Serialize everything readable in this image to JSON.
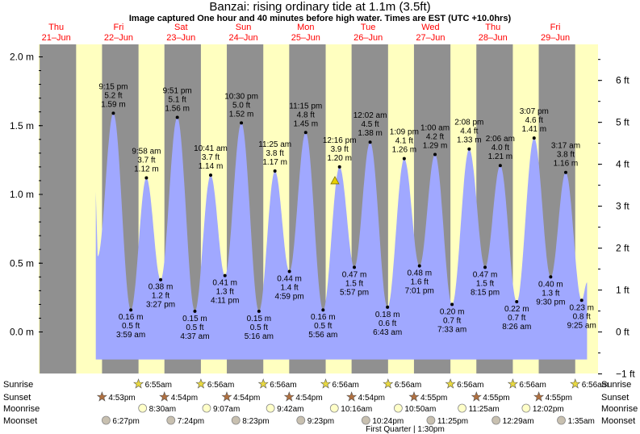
{
  "title": "Banzai: rising  ordinary tide at 1.1m (3.5ft)",
  "subtitle": "Image captured One hour and 40 minutes before high water. Times are EST (UTC +10.0hrs)",
  "colors": {
    "day": "#ffffc0",
    "night": "#909090",
    "tide": "#a0a8ff",
    "date_label": "#ff0000",
    "marker": "#000000"
  },
  "chart_data": {
    "type": "area",
    "title": "Banzai: rising  ordinary tide at 1.1m (3.5ft)",
    "ylabel_left_unit": "m",
    "ylabel_right_unit": "ft",
    "ylim_m": [
      -0.2,
      2.1
    ],
    "left_ticks": [
      "0.0 m",
      "0.5 m",
      "1.0 m",
      "1.5 m",
      "2.0 m"
    ],
    "left_tick_values": [
      0.0,
      0.5,
      1.0,
      1.5,
      2.0
    ],
    "right_ticks": [
      "−1 ft",
      "0 ft",
      "1 ft",
      "2 ft",
      "3 ft",
      "4 ft",
      "5 ft",
      "6 ft"
    ],
    "right_tick_values_ft": [
      -1,
      0,
      1,
      2,
      3,
      4,
      5,
      6
    ],
    "days": [
      {
        "name": "Thu",
        "date": "21–Jun"
      },
      {
        "name": "Fri",
        "date": "22–Jun"
      },
      {
        "name": "Sat",
        "date": "23–Jun"
      },
      {
        "name": "Sun",
        "date": "24–Jun"
      },
      {
        "name": "Mon",
        "date": "25–Jun"
      },
      {
        "name": "Tue",
        "date": "26–Jun"
      },
      {
        "name": "Wed",
        "date": "27–Jun"
      },
      {
        "name": "Thu",
        "date": "28–Jun"
      },
      {
        "name": "Fri",
        "date": "29–Jun"
      }
    ],
    "tides": [
      {
        "day": 0,
        "time": "9:15 pm",
        "ft": "5.2 ft",
        "m": "1.59 m",
        "v": 1.59,
        "type": "high"
      },
      {
        "day": 1,
        "time": "3:59 am",
        "ft": "0.5 ft",
        "m": "0.16 m",
        "v": 0.16,
        "type": "low"
      },
      {
        "day": 1,
        "time": "9:58 am",
        "ft": "3.7 ft",
        "m": "1.12 m",
        "v": 1.12,
        "type": "high"
      },
      {
        "day": 1,
        "time": "3:27 pm",
        "ft": "1.2 ft",
        "m": "0.38 m",
        "v": 0.38,
        "type": "low"
      },
      {
        "day": 1,
        "time": "9:51 pm",
        "ft": "5.1 ft",
        "m": "1.56 m",
        "v": 1.56,
        "type": "high"
      },
      {
        "day": 2,
        "time": "4:37 am",
        "ft": "0.5 ft",
        "m": "0.15 m",
        "v": 0.15,
        "type": "low"
      },
      {
        "day": 2,
        "time": "10:41 am",
        "ft": "3.7 ft",
        "m": "1.14 m",
        "v": 1.14,
        "type": "high"
      },
      {
        "day": 2,
        "time": "4:11 pm",
        "ft": "1.3 ft",
        "m": "0.41 m",
        "v": 0.41,
        "type": "low"
      },
      {
        "day": 2,
        "time": "10:30 pm",
        "ft": "5.0 ft",
        "m": "1.52 m",
        "v": 1.52,
        "type": "high"
      },
      {
        "day": 3,
        "time": "5:16 am",
        "ft": "0.5 ft",
        "m": "0.15 m",
        "v": 0.15,
        "type": "low"
      },
      {
        "day": 3,
        "time": "11:25 am",
        "ft": "3.8 ft",
        "m": "1.17 m",
        "v": 1.17,
        "type": "high"
      },
      {
        "day": 3,
        "time": "4:59 pm",
        "ft": "1.4 ft",
        "m": "0.44 m",
        "v": 0.44,
        "type": "low"
      },
      {
        "day": 3,
        "time": "11:15 pm",
        "ft": "4.8 ft",
        "m": "1.45 m",
        "v": 1.45,
        "type": "high"
      },
      {
        "day": 4,
        "time": "5:56 am",
        "ft": "0.5 ft",
        "m": "0.16 m",
        "v": 0.16,
        "type": "low"
      },
      {
        "day": 4,
        "time": "12:16 pm",
        "ft": "3.9 ft",
        "m": "1.20 m",
        "v": 1.2,
        "type": "high"
      },
      {
        "day": 4,
        "time": "5:57 pm",
        "ft": "1.5 ft",
        "m": "0.47 m",
        "v": 0.47,
        "type": "low"
      },
      {
        "day": 5,
        "time": "12:02 am",
        "ft": "4.5 ft",
        "m": "1.38 m",
        "v": 1.38,
        "type": "high"
      },
      {
        "day": 5,
        "time": "6:43 am",
        "ft": "0.6 ft",
        "m": "0.18 m",
        "v": 0.18,
        "type": "low"
      },
      {
        "day": 5,
        "time": "1:09 pm",
        "ft": "4.1 ft",
        "m": "1.26 m",
        "v": 1.26,
        "type": "high"
      },
      {
        "day": 5,
        "time": "7:01 pm",
        "ft": "1.6 ft",
        "m": "0.48 m",
        "v": 0.48,
        "type": "low"
      },
      {
        "day": 6,
        "time": "1:00 am",
        "ft": "4.2 ft",
        "m": "1.29 m",
        "v": 1.29,
        "type": "high"
      },
      {
        "day": 6,
        "time": "7:33 am",
        "ft": "0.7 ft",
        "m": "0.20 m",
        "v": 0.2,
        "type": "low"
      },
      {
        "day": 6,
        "time": "2:08 pm",
        "ft": "4.4 ft",
        "m": "1.33 m",
        "v": 1.33,
        "type": "high"
      },
      {
        "day": 6,
        "time": "8:15 pm",
        "ft": "1.5 ft",
        "m": "0.47 m",
        "v": 0.47,
        "type": "low"
      },
      {
        "day": 7,
        "time": "2:06 am",
        "ft": "4.0 ft",
        "m": "1.21 m",
        "v": 1.21,
        "type": "high"
      },
      {
        "day": 7,
        "time": "8:26 am",
        "ft": "0.7 ft",
        "m": "0.22 m",
        "v": 0.22,
        "type": "low"
      },
      {
        "day": 7,
        "time": "3:07 pm",
        "ft": "4.6 ft",
        "m": "1.41 m",
        "v": 1.41,
        "type": "high"
      },
      {
        "day": 7,
        "time": "9:30 pm",
        "ft": "1.3 ft",
        "m": "0.40 m",
        "v": 0.4,
        "type": "low"
      },
      {
        "day": 8,
        "time": "3:17 am",
        "ft": "3.8 ft",
        "m": "1.16 m",
        "v": 1.16,
        "type": "high"
      },
      {
        "day": 8,
        "time": "9:25 am",
        "ft": "0.8 ft",
        "m": "0.23 m",
        "v": 0.23,
        "type": "low"
      }
    ],
    "current_level_m": 1.1
  },
  "bottom_rows": {
    "labels": [
      "Sunrise",
      "Sunset",
      "Moonrise",
      "Moonset"
    ],
    "sunrise": [
      null,
      "6:55am",
      "6:56am",
      "6:56am",
      "6:56am",
      "6:56am",
      "6:56am",
      "6:56am",
      "6:56am"
    ],
    "sunset": [
      "4:53pm",
      "4:54pm",
      "4:54pm",
      "4:54pm",
      "4:54pm",
      "4:55pm",
      "4:55pm",
      "4:55pm"
    ],
    "moonrise": [
      "8:30am",
      "9:07am",
      "9:42am",
      "10:16am",
      "10:50am",
      "11:25am",
      "12:02pm"
    ],
    "moonset": [
      "6:27pm",
      "7:24pm",
      "8:23pm",
      "9:23pm",
      "10:24pm",
      "11:25pm",
      "12:29am",
      "1:35am"
    ],
    "first_quarter": "First Quarter | 1:30pm"
  }
}
